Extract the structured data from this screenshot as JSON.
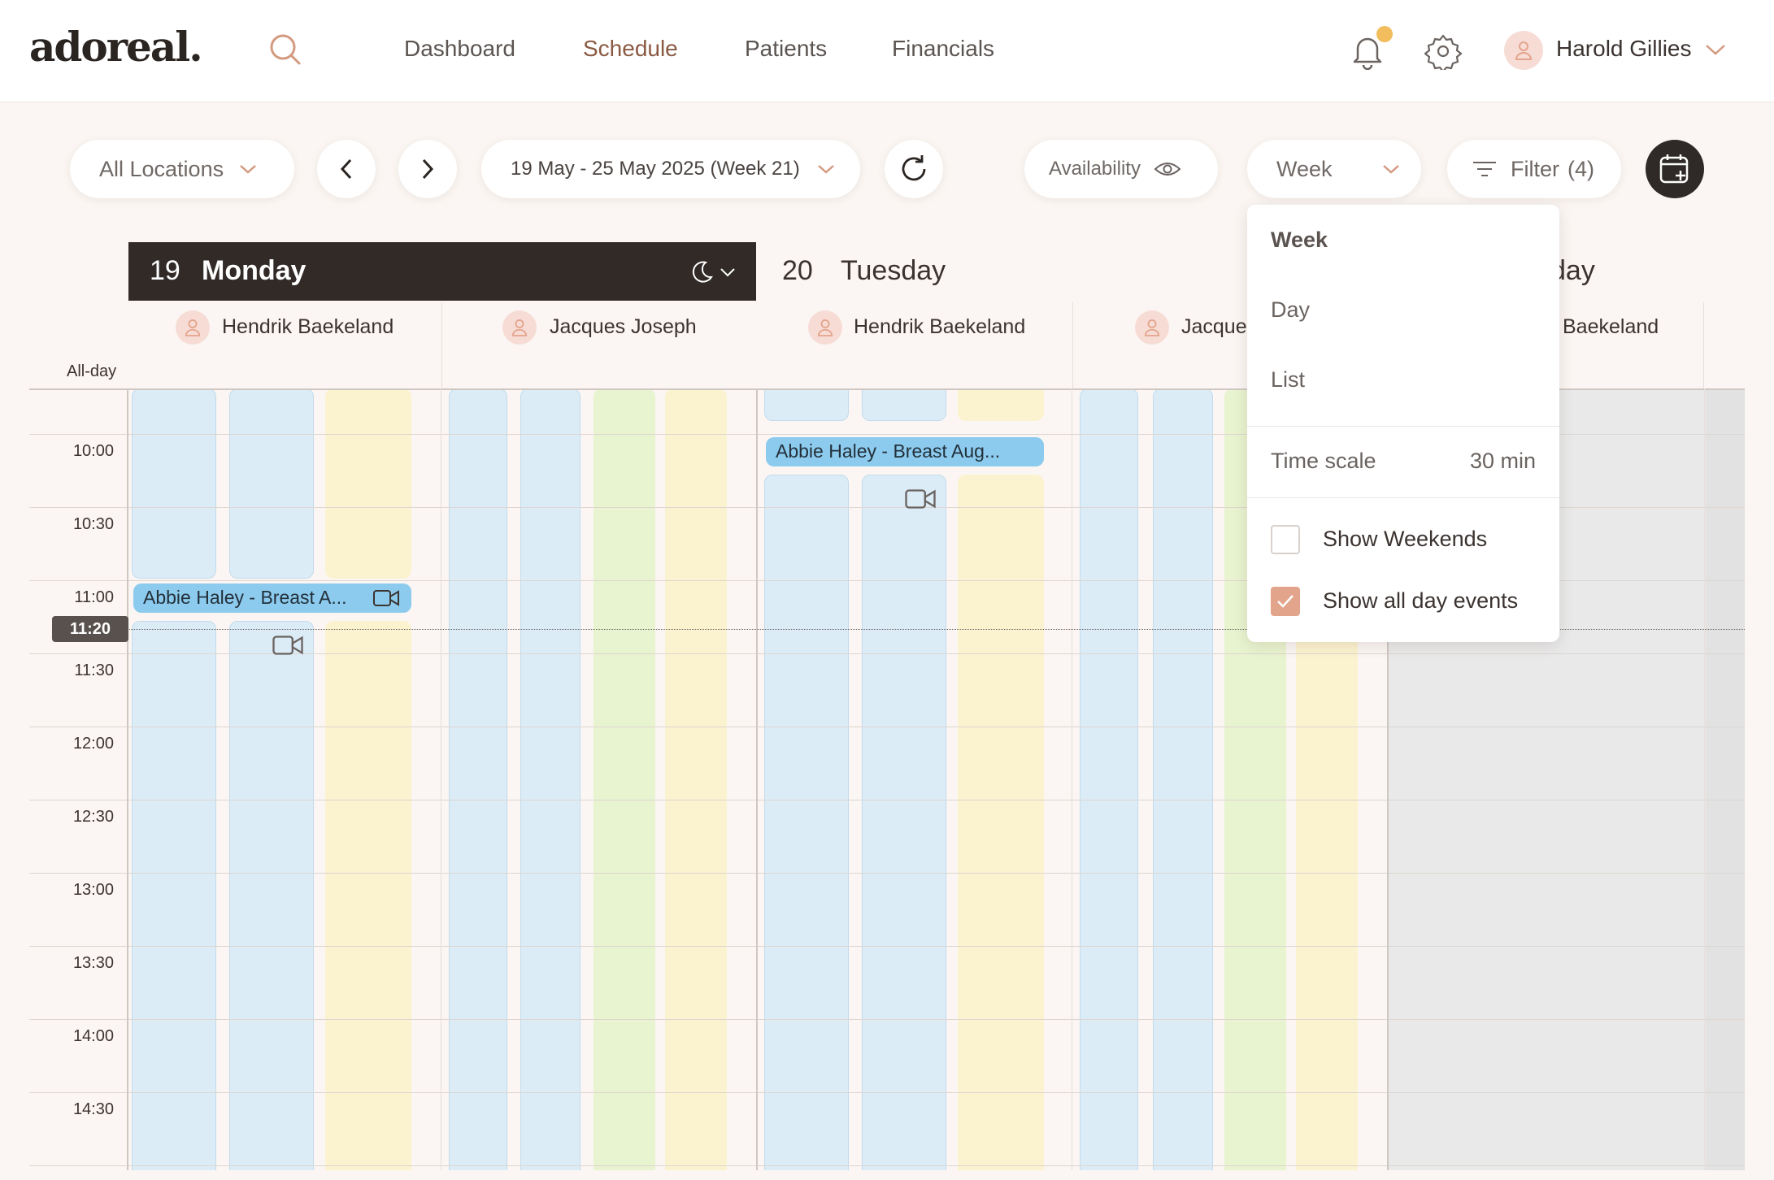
{
  "app": {
    "logo": "adoreal."
  },
  "nav": {
    "items": [
      {
        "label": "Dashboard"
      },
      {
        "label": "Schedule",
        "active": true
      },
      {
        "label": "Patients"
      },
      {
        "label": "Financials"
      }
    ],
    "notification_dot": true
  },
  "user": {
    "name": "Harold Gillies"
  },
  "toolbar": {
    "location": "All Locations",
    "date_range": "19 May - 25 May 2025 (Week 21)",
    "availability": "Availability",
    "view": "Week",
    "filter_label": "Filter",
    "filter_count": "(4)"
  },
  "calendar": {
    "allday_label": "All-day",
    "days": [
      {
        "num": "19",
        "name": "Monday",
        "selected": true
      },
      {
        "num": "20",
        "name": "Tuesday"
      },
      {
        "name_partial": "sday"
      }
    ],
    "providers": [
      {
        "name": "Hendrik Baekeland"
      },
      {
        "name": "Jacques Joseph"
      },
      {
        "name": "Hendrik Baekeland"
      },
      {
        "name": "Jacque"
      },
      {
        "name": "Baekeland"
      }
    ],
    "times": [
      "10:00",
      "10:30",
      "11:00",
      "11:30",
      "12:00",
      "12:30",
      "13:00",
      "13:30",
      "14:00",
      "14:30"
    ],
    "now": "11:20",
    "events": [
      {
        "title": "Abbie Haley - Breast A..."
      },
      {
        "title": "Abbie Haley - Breast Aug..."
      }
    ]
  },
  "view_menu": {
    "options": [
      {
        "label": "Week",
        "selected": true
      },
      {
        "label": "Day"
      },
      {
        "label": "List"
      }
    ],
    "time_scale_label": "Time scale",
    "time_scale_value": "30 min",
    "show_weekends_label": "Show Weekends",
    "show_weekends": false,
    "show_all_day_label": "Show all day events",
    "show_all_day": true
  },
  "colors": {
    "accent": "#8a5a43",
    "dark": "#312a27",
    "slot_blue": "#dbecf7",
    "slot_yellow": "#fbf3cf",
    "slot_green": "#e8f3cf",
    "event_blue": "#8ccbee",
    "checkbox_on": "#e3a48c"
  }
}
